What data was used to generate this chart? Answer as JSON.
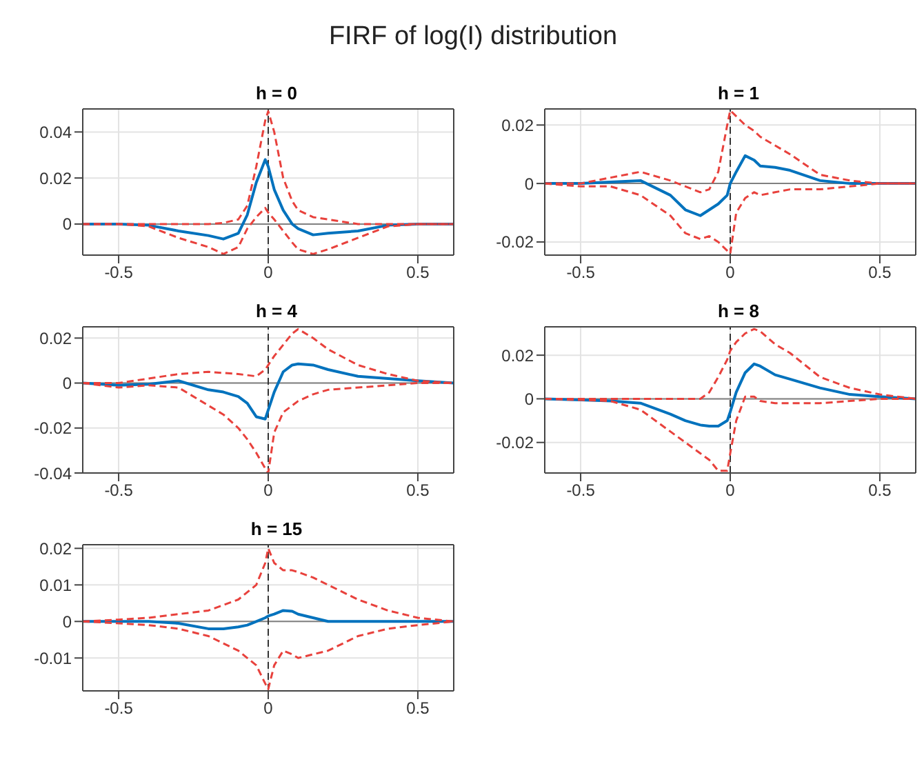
{
  "chart_data": [
    {
      "type": "other",
      "title": "FIRF of log(I) distribution"
    },
    {
      "type": "line",
      "title": "h = 0",
      "x": [
        -0.62,
        -0.5,
        -0.4,
        -0.3,
        -0.2,
        -0.15,
        -0.1,
        -0.07,
        -0.04,
        -0.01,
        0,
        0.02,
        0.05,
        0.08,
        0.1,
        0.15,
        0.2,
        0.3,
        0.4,
        0.5,
        0.62
      ],
      "xlim": [
        -0.62,
        0.62
      ],
      "xticks": [
        -0.5,
        0,
        0.5
      ],
      "ylim": [
        -0.0135,
        0.05
      ],
      "yticks": [
        0,
        0.02,
        0.04
      ],
      "grid": true,
      "marker": "none",
      "ref_lines": [
        {
          "axis": "y",
          "value": 0,
          "color": "#808080",
          "line_style": "solid"
        },
        {
          "axis": "x",
          "value": 0,
          "color": "#333333",
          "line_style": "dashed"
        }
      ],
      "series": [
        {
          "color": "#0072bd",
          "line_style": "solid",
          "values": [
            0,
            0,
            -0.0005,
            -0.003,
            -0.005,
            -0.0065,
            -0.004,
            0.004,
            0.018,
            0.028,
            0.025,
            0.015,
            0.006,
            0,
            -0.002,
            -0.0047,
            -0.004,
            -0.003,
            -0.0005,
            0,
            0
          ]
        },
        {
          "color": "#e8413c",
          "line_style": "dashed",
          "values": [
            0,
            0,
            0,
            0,
            0,
            0.0005,
            0.002,
            0.008,
            0.025,
            0.045,
            0.049,
            0.04,
            0.02,
            0.01,
            0.006,
            0.003,
            0.002,
            0,
            0,
            0,
            0
          ]
        },
        {
          "color": "#e8413c",
          "line_style": "dashed",
          "values": [
            0,
            0,
            -0.001,
            -0.006,
            -0.01,
            -0.013,
            -0.01,
            -0.002,
            0.003,
            0.007,
            0.005,
            0.002,
            -0.003,
            -0.008,
            -0.011,
            -0.013,
            -0.011,
            -0.006,
            -0.001,
            0,
            0
          ]
        }
      ]
    },
    {
      "type": "line",
      "title": "h = 1",
      "x": [
        -0.62,
        -0.5,
        -0.4,
        -0.3,
        -0.2,
        -0.15,
        -0.1,
        -0.07,
        -0.04,
        -0.01,
        0,
        0.02,
        0.05,
        0.08,
        0.1,
        0.15,
        0.2,
        0.3,
        0.4,
        0.5,
        0.62
      ],
      "xlim": [
        -0.62,
        0.62
      ],
      "xticks": [
        -0.5,
        0,
        0.5
      ],
      "ylim": [
        -0.0245,
        0.0255
      ],
      "yticks": [
        -0.02,
        0,
        0.02
      ],
      "grid": true,
      "marker": "none",
      "ref_lines": [
        {
          "axis": "y",
          "value": 0,
          "color": "#808080",
          "line_style": "solid"
        },
        {
          "axis": "x",
          "value": 0,
          "color": "#333333",
          "line_style": "dashed"
        }
      ],
      "series": [
        {
          "color": "#0072bd",
          "line_style": "solid",
          "values": [
            0,
            0,
            0.0005,
            0.001,
            -0.004,
            -0.009,
            -0.011,
            -0.009,
            -0.007,
            -0.004,
            0,
            0.004,
            0.0095,
            0.008,
            0.006,
            0.0055,
            0.0045,
            0.001,
            0,
            0,
            0
          ]
        },
        {
          "color": "#e8413c",
          "line_style": "dashed",
          "values": [
            0,
            0,
            0.002,
            0.004,
            0.001,
            -0.001,
            -0.003,
            -0.002,
            0.004,
            0.02,
            0.025,
            0.023,
            0.02,
            0.018,
            0.016,
            0.013,
            0.01,
            0.003,
            0.001,
            0,
            0
          ]
        },
        {
          "color": "#e8413c",
          "line_style": "dashed",
          "values": [
            0,
            -0.001,
            -0.001,
            -0.004,
            -0.011,
            -0.017,
            -0.019,
            -0.018,
            -0.02,
            -0.023,
            -0.024,
            -0.01,
            -0.005,
            -0.003,
            -0.004,
            -0.003,
            -0.002,
            -0.002,
            -0.001,
            0,
            0
          ]
        }
      ]
    },
    {
      "type": "line",
      "title": "h = 4",
      "x": [
        -0.62,
        -0.5,
        -0.4,
        -0.3,
        -0.2,
        -0.15,
        -0.1,
        -0.07,
        -0.04,
        -0.01,
        0,
        0.02,
        0.05,
        0.08,
        0.1,
        0.15,
        0.2,
        0.3,
        0.4,
        0.5,
        0.62
      ],
      "xlim": [
        -0.62,
        0.62
      ],
      "xticks": [
        -0.5,
        0,
        0.5
      ],
      "ylim": [
        -0.04,
        0.025
      ],
      "yticks": [
        -0.04,
        -0.02,
        0,
        0.02
      ],
      "grid": true,
      "marker": "none",
      "ref_lines": [
        {
          "axis": "y",
          "value": 0,
          "color": "#808080",
          "line_style": "solid"
        },
        {
          "axis": "x",
          "value": 0,
          "color": "#333333",
          "line_style": "dashed"
        }
      ],
      "series": [
        {
          "color": "#0072bd",
          "line_style": "solid",
          "values": [
            0,
            -0.001,
            -0.0005,
            0.001,
            -0.003,
            -0.004,
            -0.006,
            -0.009,
            -0.015,
            -0.016,
            -0.012,
            -0.004,
            0.005,
            0.008,
            0.0085,
            0.008,
            0.006,
            0.003,
            0.002,
            0.001,
            0
          ]
        },
        {
          "color": "#e8413c",
          "line_style": "dashed",
          "values": [
            0,
            0,
            0.002,
            0.004,
            0.005,
            0.0045,
            0.004,
            0.0035,
            0.003,
            0.006,
            0.008,
            0.012,
            0.017,
            0.022,
            0.024,
            0.02,
            0.015,
            0.008,
            0.004,
            0.001,
            0
          ]
        },
        {
          "color": "#e8413c",
          "line_style": "dashed",
          "values": [
            0,
            -0.002,
            -0.001,
            -0.002,
            -0.01,
            -0.014,
            -0.02,
            -0.025,
            -0.031,
            -0.038,
            -0.04,
            -0.022,
            -0.013,
            -0.01,
            -0.008,
            -0.005,
            -0.003,
            -0.002,
            -0.001,
            0,
            0
          ]
        }
      ]
    },
    {
      "type": "line",
      "title": "h = 8",
      "x": [
        -0.62,
        -0.5,
        -0.4,
        -0.3,
        -0.2,
        -0.15,
        -0.1,
        -0.07,
        -0.04,
        -0.01,
        0,
        0.02,
        0.05,
        0.08,
        0.1,
        0.15,
        0.2,
        0.3,
        0.4,
        0.5,
        0.62
      ],
      "xlim": [
        -0.62,
        0.62
      ],
      "xticks": [
        -0.5,
        0,
        0.5
      ],
      "ylim": [
        -0.034,
        0.033
      ],
      "yticks": [
        -0.02,
        0,
        0.02
      ],
      "grid": true,
      "marker": "none",
      "ref_lines": [
        {
          "axis": "y",
          "value": 0,
          "color": "#808080",
          "line_style": "solid"
        },
        {
          "axis": "x",
          "value": 0,
          "color": "#333333",
          "line_style": "dashed"
        }
      ],
      "series": [
        {
          "color": "#0072bd",
          "line_style": "solid",
          "values": [
            0,
            -0.0005,
            -0.001,
            -0.002,
            -0.007,
            -0.01,
            -0.012,
            -0.0125,
            -0.0125,
            -0.01,
            -0.006,
            0.003,
            0.012,
            0.016,
            0.015,
            0.011,
            0.009,
            0.005,
            0.002,
            0.001,
            0
          ]
        },
        {
          "color": "#e8413c",
          "line_style": "dashed",
          "values": [
            0,
            0,
            0,
            0,
            0,
            0,
            0,
            0.003,
            0.01,
            0.018,
            0.022,
            0.026,
            0.03,
            0.032,
            0.031,
            0.025,
            0.021,
            0.01,
            0.005,
            0.002,
            0
          ]
        },
        {
          "color": "#e8413c",
          "line_style": "dashed",
          "values": [
            0,
            -0.0005,
            -0.001,
            -0.005,
            -0.015,
            -0.02,
            -0.025,
            -0.028,
            -0.033,
            -0.033,
            -0.025,
            -0.01,
            0.001,
            0.001,
            -0.001,
            -0.002,
            -0.002,
            -0.002,
            -0.001,
            0,
            0
          ]
        }
      ]
    },
    {
      "type": "line",
      "title": "h = 15",
      "x": [
        -0.62,
        -0.5,
        -0.4,
        -0.3,
        -0.2,
        -0.15,
        -0.1,
        -0.07,
        -0.04,
        -0.01,
        0,
        0.02,
        0.05,
        0.08,
        0.1,
        0.15,
        0.2,
        0.3,
        0.4,
        0.5,
        0.62
      ],
      "xlim": [
        -0.62,
        0.62
      ],
      "xticks": [
        -0.5,
        0,
        0.5
      ],
      "ylim": [
        -0.019,
        0.021
      ],
      "yticks": [
        -0.01,
        0,
        0.01,
        0.02
      ],
      "grid": true,
      "marker": "none",
      "ref_lines": [
        {
          "axis": "y",
          "value": 0,
          "color": "#808080",
          "line_style": "solid"
        },
        {
          "axis": "x",
          "value": 0,
          "color": "#333333",
          "line_style": "dashed"
        }
      ],
      "series": [
        {
          "color": "#0072bd",
          "line_style": "solid",
          "values": [
            0,
            0,
            0,
            -0.0005,
            -0.002,
            -0.002,
            -0.0015,
            -0.001,
            0,
            0.001,
            0.0015,
            0.002,
            0.003,
            0.0028,
            0.002,
            0.001,
            0,
            0,
            0,
            0,
            0
          ]
        },
        {
          "color": "#e8413c",
          "line_style": "dashed",
          "values": [
            0,
            0.0005,
            0.001,
            0.002,
            0.003,
            0.0045,
            0.006,
            0.008,
            0.01,
            0.016,
            0.02,
            0.016,
            0.014,
            0.014,
            0.0135,
            0.012,
            0.01,
            0.006,
            0.003,
            0.001,
            0
          ]
        },
        {
          "color": "#e8413c",
          "line_style": "dashed",
          "values": [
            0,
            -0.0005,
            -0.001,
            -0.002,
            -0.004,
            -0.006,
            -0.008,
            -0.01,
            -0.012,
            -0.017,
            -0.0185,
            -0.012,
            -0.008,
            -0.009,
            -0.01,
            -0.009,
            -0.008,
            -0.004,
            -0.002,
            -0.001,
            0
          ]
        }
      ]
    }
  ]
}
